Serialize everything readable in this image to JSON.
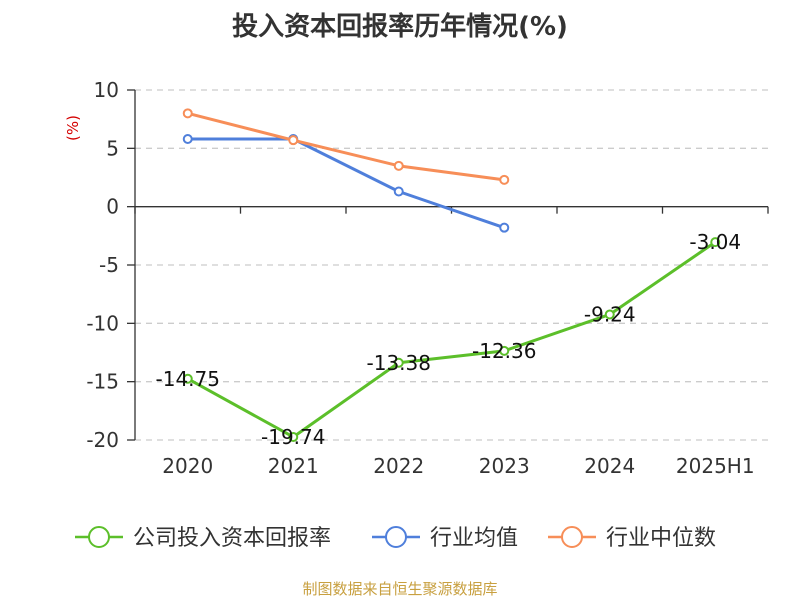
{
  "chart_data": {
    "type": "line",
    "title": "投入资本回报率历年情况(%)",
    "ylabel": "(%)",
    "categories": [
      "2020",
      "2021",
      "2022",
      "2023",
      "2024",
      "2025H1"
    ],
    "ylim": [
      -20,
      10
    ],
    "yticks": [
      10,
      5,
      0,
      -5,
      -10,
      -15,
      -20
    ],
    "grid": true,
    "legend_position": "bottom",
    "series": [
      {
        "name": "公司投入资本回报率",
        "color": "#5cbf2a",
        "values": [
          -14.75,
          -19.74,
          -13.38,
          -12.36,
          -9.24,
          -3.04
        ],
        "labels": [
          "-14.75",
          "-19.74",
          "-13.38",
          "-12.36",
          "-9.24",
          "-3.04"
        ]
      },
      {
        "name": "行业均值",
        "color": "#4f7fdb",
        "values": [
          5.8,
          5.8,
          1.3,
          -1.8,
          null,
          null
        ]
      },
      {
        "name": "行业中位数",
        "color": "#f78e58",
        "values": [
          8.0,
          5.7,
          3.5,
          2.3,
          null,
          null
        ]
      }
    ]
  },
  "source": "制图数据来自恒生聚源数据库"
}
